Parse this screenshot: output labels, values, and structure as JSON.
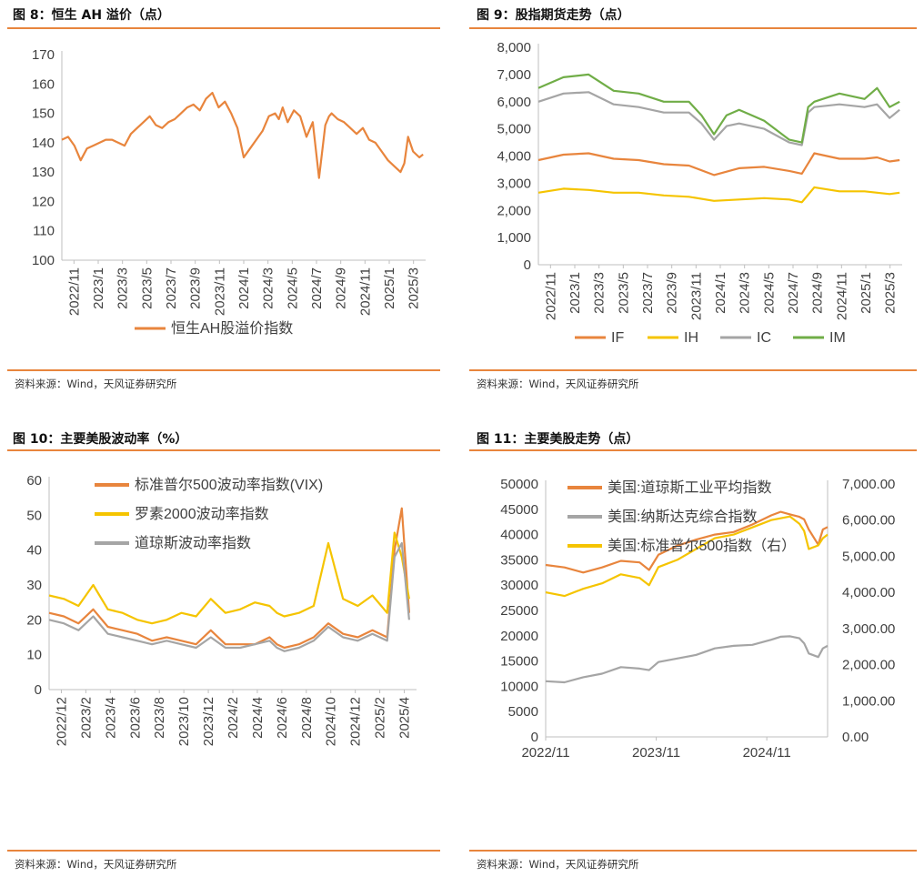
{
  "panels": [
    {
      "title": "图 8：恒生 AH 溢价（点）",
      "source": "资料来源：Wind，天风证券研究所",
      "chart_data": {
        "type": "line",
        "title": "恒生AH溢价（点）",
        "ylim": [
          100,
          170
        ],
        "yticks": [
          "100",
          "110",
          "120",
          "130",
          "140",
          "150",
          "160",
          "170"
        ],
        "xticks": [
          "2022/11",
          "2023/1",
          "2023/3",
          "2023/5",
          "2023/7",
          "2023/9",
          "2023/11",
          "2024/1",
          "2024/3",
          "2024/5",
          "2024/7",
          "2024/9",
          "2024/11",
          "2025/1",
          "2025/3"
        ],
        "x_range": [
          0,
          29
        ],
        "series": [
          {
            "name": "恒生AH股溢价指数",
            "color": "#e8853d",
            "x": [
              0,
              0.5,
              1,
              1.5,
              2,
              2.5,
              3,
              3.5,
              4,
              4.5,
              5,
              5.5,
              6,
              6.5,
              7,
              7.5,
              8,
              8.5,
              9,
              9.5,
              10,
              10.5,
              11,
              11.5,
              12,
              12.5,
              13,
              13.5,
              14,
              14.5,
              15,
              15.5,
              16,
              16.5,
              17,
              17.3,
              17.6,
              18,
              18.5,
              19,
              19.5,
              20,
              20.5,
              21,
              21.3,
              21.5,
              22,
              22.5,
              23,
              23.5,
              24,
              24.5,
              25,
              25.5,
              26,
              26.5,
              27,
              27.3,
              27.6,
              28,
              28.5,
              28.8
            ],
            "values": [
              141,
              142,
              139,
              134,
              138,
              139,
              140,
              141,
              141,
              140,
              139,
              143,
              145,
              147,
              149,
              146,
              145,
              147,
              148,
              150,
              152,
              153,
              151,
              155,
              157,
              152,
              154,
              150,
              145,
              135,
              138,
              141,
              144,
              149,
              150,
              148,
              152,
              147,
              151,
              149,
              142,
              147,
              128,
              146,
              149,
              150,
              148,
              147,
              145,
              143,
              145,
              141,
              140,
              137,
              134,
              132,
              130,
              133,
              142,
              137,
              135,
              136
            ]
          }
        ]
      }
    },
    {
      "title": "图 9：股指期货走势（点）",
      "source": "资料来源：Wind，天风证券研究所",
      "chart_data": {
        "type": "line",
        "title": "股指期货走势（点）",
        "ylim": [
          0,
          8000
        ],
        "yticks": [
          "0",
          "1,000",
          "2,000",
          "3,000",
          "4,000",
          "5,000",
          "6,000",
          "7,000",
          "8,000"
        ],
        "xticks": [
          "2022/11",
          "2023/1",
          "2023/3",
          "2023/5",
          "2023/7",
          "2023/9",
          "2023/11",
          "2024/1",
          "2024/3",
          "2024/5",
          "2024/7",
          "2024/9",
          "2024/11",
          "2025/1",
          "2025/3"
        ],
        "x_range": [
          0,
          29
        ],
        "series": [
          {
            "name": "IF",
            "color": "#e8853d",
            "x": [
              0,
              2,
              4,
              6,
              8,
              10,
              12,
              14,
              16,
              18,
              20,
              21,
              22,
              24,
              26,
              27,
              28,
              28.8
            ],
            "values": [
              3850,
              4050,
              4100,
              3900,
              3850,
              3700,
              3650,
              3300,
              3550,
              3600,
              3450,
              3350,
              4100,
              3900,
              3900,
              3950,
              3800,
              3850
            ]
          },
          {
            "name": "IH",
            "color": "#f5c400",
            "x": [
              0,
              2,
              4,
              6,
              8,
              10,
              12,
              14,
              16,
              18,
              20,
              21,
              22,
              24,
              26,
              27,
              28,
              28.8
            ],
            "values": [
              2650,
              2800,
              2750,
              2650,
              2650,
              2550,
              2500,
              2350,
              2400,
              2450,
              2400,
              2300,
              2850,
              2700,
              2700,
              2650,
              2600,
              2650
            ]
          },
          {
            "name": "IC",
            "color": "#a5a5a5",
            "x": [
              0,
              2,
              4,
              6,
              8,
              10,
              12,
              13,
              14,
              15,
              16,
              18,
              20,
              21,
              21.5,
              22,
              24,
              26,
              27,
              28,
              28.8
            ],
            "values": [
              6000,
              6300,
              6350,
              5900,
              5800,
              5600,
              5600,
              5200,
              4600,
              5100,
              5200,
              5000,
              4500,
              4400,
              5600,
              5800,
              5900,
              5800,
              5900,
              5400,
              5700
            ]
          },
          {
            "name": "IM",
            "color": "#70ad47",
            "x": [
              0,
              2,
              4,
              6,
              8,
              10,
              12,
              13,
              14,
              15,
              16,
              18,
              20,
              21,
              21.5,
              22,
              24,
              26,
              27,
              28,
              28.8
            ],
            "values": [
              6500,
              6900,
              7000,
              6400,
              6300,
              6000,
              6000,
              5500,
              4800,
              5500,
              5700,
              5300,
              4600,
              4500,
              5800,
              6000,
              6300,
              6100,
              6500,
              5800,
              6000
            ]
          }
        ]
      }
    },
    {
      "title": "图 10：主要美股波动率（%）",
      "source": "资料来源：Wind，天风证券研究所",
      "chart_data": {
        "type": "line",
        "title": "主要美股波动率（%）",
        "ylim": [
          0,
          60
        ],
        "yticks": [
          "0",
          "10",
          "20",
          "30",
          "40",
          "50",
          "60"
        ],
        "xticks": [
          "2022/12",
          "2023/2",
          "2023/4",
          "2023/6",
          "2023/8",
          "2023/10",
          "2023/12",
          "2024/2",
          "2024/4",
          "2024/6",
          "2024/8",
          "2024/10",
          "2024/12",
          "2025/2",
          "2025/4"
        ],
        "x_range": [
          0,
          25
        ],
        "series": [
          {
            "name": "标准普尔500波动率指数(VIX)",
            "color": "#e8853d",
            "x": [
              0,
              1,
              2,
              3,
              4,
              5,
              6,
              7,
              8,
              9,
              10,
              11,
              12,
              13,
              14,
              15,
              15.5,
              16,
              17,
              18,
              19,
              20,
              21,
              22,
              23,
              23.5,
              24,
              24.5
            ],
            "values": [
              22,
              21,
              19,
              23,
              18,
              17,
              16,
              14,
              15,
              14,
              13,
              17,
              13,
              13,
              13,
              15,
              13,
              12,
              13,
              15,
              19,
              16,
              15,
              17,
              15,
              40,
              52,
              22
            ]
          },
          {
            "name": "罗素2000波动率指数",
            "color": "#f5c400",
            "x": [
              0,
              1,
              2,
              3,
              4,
              5,
              6,
              7,
              8,
              9,
              10,
              11,
              12,
              13,
              14,
              15,
              15.5,
              16,
              17,
              18,
              19,
              20,
              21,
              22,
              23,
              23.5,
              24,
              24.5
            ],
            "values": [
              27,
              26,
              24,
              30,
              23,
              22,
              20,
              19,
              20,
              22,
              21,
              26,
              22,
              23,
              25,
              24,
              22,
              21,
              22,
              24,
              42,
              26,
              24,
              27,
              22,
              45,
              38,
              26
            ]
          },
          {
            "name": "道琼斯波动率指数",
            "color": "#a5a5a5",
            "x": [
              0,
              1,
              2,
              3,
              4,
              5,
              6,
              7,
              8,
              9,
              10,
              11,
              12,
              13,
              14,
              15,
              15.5,
              16,
              17,
              18,
              19,
              20,
              21,
              22,
              23,
              23.5,
              24,
              24.5
            ],
            "values": [
              20,
              19,
              17,
              21,
              16,
              15,
              14,
              13,
              14,
              13,
              12,
              15,
              12,
              12,
              13,
              14,
              12,
              11,
              12,
              14,
              18,
              15,
              14,
              16,
              14,
              38,
              42,
              20
            ]
          }
        ]
      }
    },
    {
      "title": "图 11：主要美股走势（点）",
      "source": "资料来源：Wind，天风证券研究所",
      "chart_data": {
        "type": "line",
        "title": "主要美股走势（点）",
        "ylim": [
          0,
          50000
        ],
        "y2lim": [
          0,
          7000
        ],
        "yticks": [
          "0",
          "5000",
          "10000",
          "15000",
          "20000",
          "25000",
          "30000",
          "35000",
          "40000",
          "45000",
          "50000"
        ],
        "y2ticks": [
          "0.00",
          "1,000.00",
          "2,000.00",
          "3,000.00",
          "4,000.00",
          "5,000.00",
          "6,000.00",
          "7,000.00"
        ],
        "xticks": [
          "2022/11",
          "2023/11",
          "2024/11"
        ],
        "x_range": [
          0,
          30
        ],
        "series": [
          {
            "name": "美国:道琼斯工业平均指数",
            "color": "#e8853d",
            "axis": "left",
            "x": [
              0,
              2,
              4,
              6,
              8,
              10,
              11,
              12,
              14,
              16,
              18,
              20,
              22,
              24,
              25,
              26,
              27,
              27.5,
              28,
              29,
              29.5,
              30
            ],
            "values": [
              34000,
              33500,
              32500,
              33500,
              34800,
              34500,
              33000,
              36000,
              37800,
              39000,
              40000,
              40500,
              42000,
              43800,
              44500,
              44000,
              43500,
              43000,
              41000,
              38000,
              41000,
              41500
            ]
          },
          {
            "name": "美国:纳斯达克综合指数",
            "color": "#a5a5a5",
            "axis": "left",
            "x": [
              0,
              2,
              4,
              6,
              8,
              10,
              11,
              12,
              14,
              16,
              18,
              20,
              22,
              24,
              25,
              26,
              27,
              27.5,
              28,
              29,
              29.5,
              30
            ],
            "values": [
              11000,
              10800,
              11800,
              12500,
              13800,
              13500,
              13200,
              14800,
              15500,
              16200,
              17500,
              18000,
              18200,
              19200,
              19800,
              19900,
              19500,
              18500,
              16500,
              15800,
              17500,
              18000
            ]
          },
          {
            "name": "美国:标准普尔500指数（右）",
            "color": "#f5c400",
            "axis": "right",
            "x": [
              0,
              2,
              4,
              6,
              8,
              10,
              11,
              12,
              14,
              16,
              18,
              20,
              22,
              24,
              25,
              26,
              27,
              27.5,
              28,
              29,
              29.5,
              30
            ],
            "values": [
              4000,
              3900,
              4100,
              4250,
              4500,
              4400,
              4200,
              4700,
              4900,
              5200,
              5500,
              5600,
              5800,
              6000,
              6050,
              6100,
              5900,
              5700,
              5200,
              5300,
              5500,
              5600
            ]
          }
        ]
      }
    }
  ]
}
